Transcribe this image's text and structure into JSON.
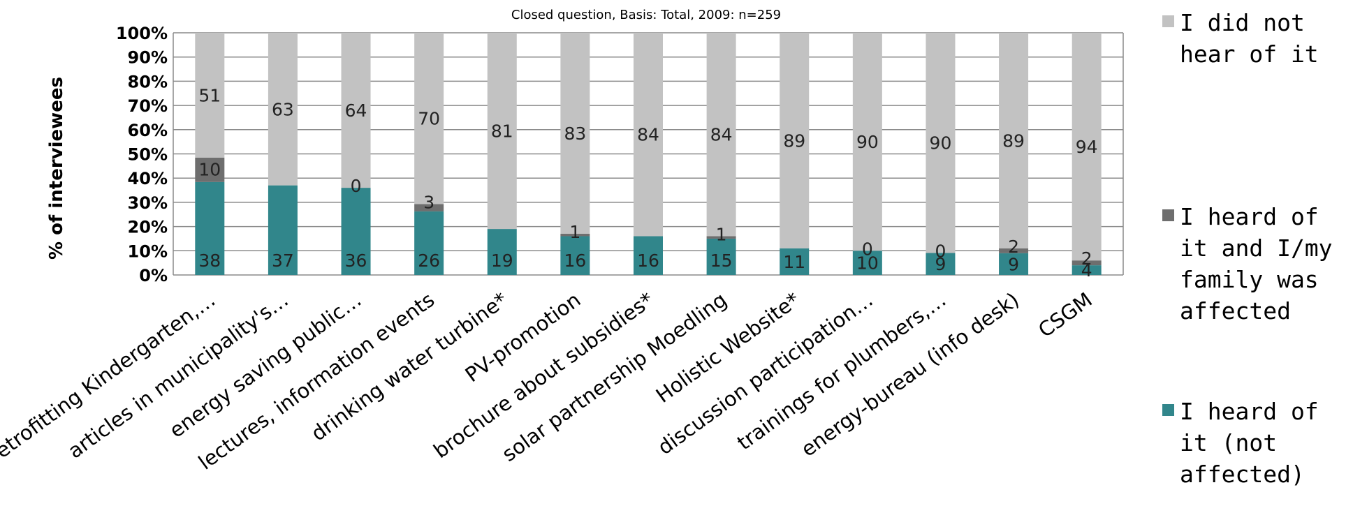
{
  "chart_data": {
    "type": "bar",
    "stacked": true,
    "title": "Closed question, Basis: Total, 2009: n=259",
    "xlabel": "",
    "ylabel": "% of interviewees",
    "ylim": [
      0,
      100
    ],
    "yticks": [
      "0%",
      "10%",
      "20%",
      "30%",
      "40%",
      "50%",
      "60%",
      "70%",
      "80%",
      "90%",
      "100%"
    ],
    "grid": true,
    "legend_position": "right",
    "categories": [
      "retrofitting Kindergarten,…",
      "articles in municipality's…",
      "energy saving public…",
      "lectures, information events",
      "drinking water turbine*",
      "PV-promotion",
      "brochure about subsidies*",
      "solar partnership Moedling",
      "Holistic Website*",
      "discussion participation…",
      "trainings for plumbers,…",
      "energy-bureau (info desk)",
      "CSGM"
    ],
    "series": [
      {
        "name": "I heard of it (not affected)",
        "color": "#31868b",
        "values": [
          38,
          37,
          36,
          26,
          19,
          16,
          16,
          15,
          11,
          10,
          9,
          9,
          4
        ]
      },
      {
        "name": "I heard of it and I/my family was affected",
        "color": "#6e6e6e",
        "values": [
          10,
          null,
          0,
          3,
          null,
          1,
          null,
          1,
          null,
          0,
          0,
          2,
          2
        ]
      },
      {
        "name": "I did not hear of it",
        "color": "#c2c2c2",
        "values": [
          51,
          63,
          64,
          70,
          81,
          83,
          84,
          84,
          89,
          90,
          90,
          89,
          94
        ]
      }
    ]
  }
}
